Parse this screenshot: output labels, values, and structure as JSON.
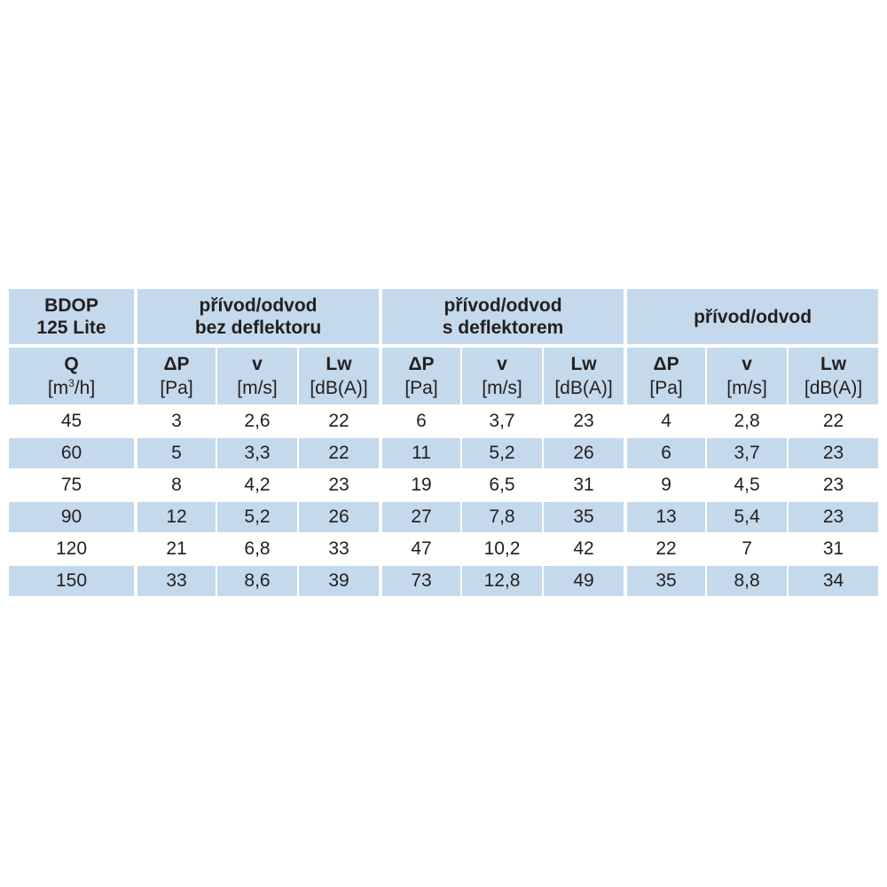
{
  "header": {
    "model_line1": "BDOP",
    "model_line2": "125 Lite",
    "groups": [
      {
        "line1": "přívod/odvod",
        "line2": "bez deflektoru"
      },
      {
        "line1": "přívod/odvod",
        "line2": "s deflektorem"
      },
      {
        "line1": "přívod/odvod",
        "line2": ""
      }
    ],
    "q_symbol": "Q",
    "q_unit_pre": "[m",
    "q_unit_sup": "3",
    "q_unit_post": "/h]",
    "columns": [
      {
        "symbol": "ΔP",
        "unit": "[Pa]"
      },
      {
        "symbol": "v",
        "unit": "[m/s]"
      },
      {
        "symbol": "Lw",
        "unit": "[dB(A)]"
      }
    ]
  },
  "rows": [
    [
      "45",
      "3",
      "2,6",
      "22",
      "6",
      "3,7",
      "23",
      "4",
      "2,8",
      "22"
    ],
    [
      "60",
      "5",
      "3,3",
      "22",
      "11",
      "5,2",
      "26",
      "6",
      "3,7",
      "23"
    ],
    [
      "75",
      "8",
      "4,2",
      "23",
      "19",
      "6,5",
      "31",
      "9",
      "4,5",
      "23"
    ],
    [
      "90",
      "12",
      "5,2",
      "26",
      "27",
      "7,8",
      "35",
      "13",
      "5,4",
      "23"
    ],
    [
      "120",
      "21",
      "6,8",
      "33",
      "47",
      "10,2",
      "42",
      "22",
      "7",
      "31"
    ],
    [
      "150",
      "33",
      "8,6",
      "39",
      "73",
      "12,8",
      "49",
      "35",
      "8,8",
      "34"
    ]
  ],
  "colors": {
    "header_bg": "#c4d9eb",
    "stripe_bg": "#c4d9eb",
    "text": "#231f20"
  }
}
